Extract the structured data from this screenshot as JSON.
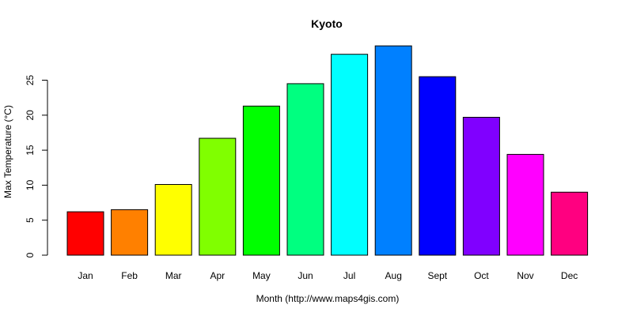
{
  "chart_data": {
    "type": "bar",
    "title": "Kyoto",
    "xlabel": "Month (http://www.maps4gis.com)",
    "ylabel": "Max Temperature (°C)",
    "categories": [
      "Jan",
      "Feb",
      "Mar",
      "Apr",
      "May",
      "Jun",
      "Jul",
      "Aug",
      "Sept",
      "Oct",
      "Nov",
      "Dec"
    ],
    "values": [
      6.2,
      6.5,
      10.1,
      16.7,
      21.3,
      24.5,
      28.7,
      29.9,
      25.5,
      19.7,
      14.4,
      9.0
    ],
    "colors": [
      "#FF0000",
      "#FF8000",
      "#FFFF00",
      "#80FF00",
      "#00FF00",
      "#00FF80",
      "#00FFFF",
      "#0080FF",
      "#0000FF",
      "#8000FF",
      "#FF00FF",
      "#FF0080"
    ],
    "ylim": [
      0,
      30
    ],
    "yticks": [
      0,
      5,
      10,
      15,
      20,
      25
    ],
    "grid": false,
    "legend": "none"
  }
}
